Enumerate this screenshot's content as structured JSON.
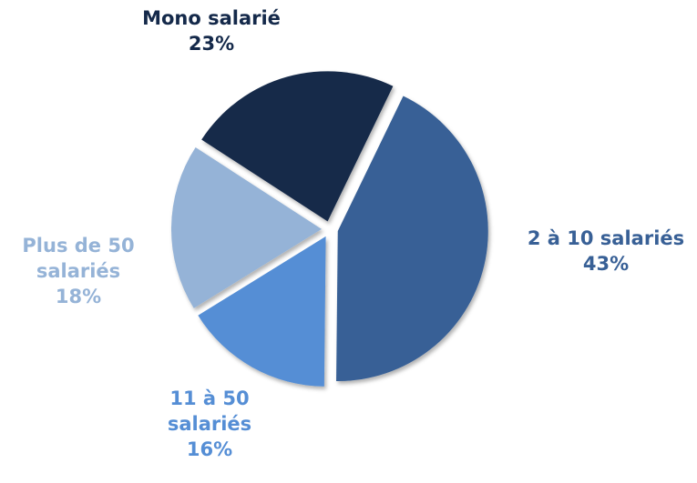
{
  "chart_data": {
    "type": "pie",
    "categories": [
      "Mono salarié",
      "2 à 10 salariés",
      "11 à 50 salariés",
      "Plus de 50 salariés"
    ],
    "values": [
      23,
      43,
      16,
      18
    ],
    "value_labels": [
      "23%",
      "43%",
      "16%",
      "18%"
    ],
    "colors": [
      "#14294a",
      "#386096",
      "#558ed5",
      "#95b3d7"
    ]
  }
}
